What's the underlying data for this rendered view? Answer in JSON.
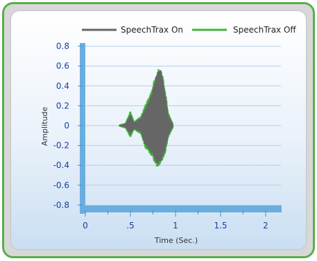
{
  "chart_data": {
    "type": "line",
    "xlabel": "Time (Sec.)",
    "ylabel": "Amplitude",
    "xlim": [
      0,
      2.15
    ],
    "ylim": [
      -0.85,
      0.85
    ],
    "x_ticks": [
      {
        "value": 0,
        "label": "0"
      },
      {
        "value": 0.5,
        "label": ".5"
      },
      {
        "value": 1,
        "label": "1"
      },
      {
        "value": 1.5,
        "label": "1.5"
      },
      {
        "value": 2,
        "label": "2"
      }
    ],
    "y_ticks": [
      {
        "value": 0.8,
        "label": "0.8"
      },
      {
        "value": 0.6,
        "label": "0.6"
      },
      {
        "value": 0.4,
        "label": "0.4"
      },
      {
        "value": 0.2,
        "label": "0.2"
      },
      {
        "value": 0,
        "label": "0"
      },
      {
        "value": -0.2,
        "label": "-0.2"
      },
      {
        "value": -0.4,
        "label": "-0.4"
      },
      {
        "value": -0.6,
        "label": "-0.6"
      },
      {
        "value": -0.8,
        "label": "-0.8"
      }
    ],
    "legend_position": "top",
    "series": [
      {
        "name": "SpeechTrax On",
        "color": "#666666",
        "envelope": [
          {
            "x": 0.38,
            "upper": 0.005,
            "lower": -0.005
          },
          {
            "x": 0.45,
            "upper": 0.02,
            "lower": -0.02
          },
          {
            "x": 0.5,
            "upper": 0.12,
            "lower": -0.09
          },
          {
            "x": 0.54,
            "upper": 0.03,
            "lower": -0.03
          },
          {
            "x": 0.62,
            "upper": 0.08,
            "lower": -0.07
          },
          {
            "x": 0.66,
            "upper": 0.16,
            "lower": -0.19
          },
          {
            "x": 0.72,
            "upper": 0.28,
            "lower": -0.26
          },
          {
            "x": 0.77,
            "upper": 0.44,
            "lower": -0.34
          },
          {
            "x": 0.8,
            "upper": 0.55,
            "lower": -0.4
          },
          {
            "x": 0.84,
            "upper": 0.56,
            "lower": -0.36
          },
          {
            "x": 0.88,
            "upper": 0.36,
            "lower": -0.27
          },
          {
            "x": 0.92,
            "upper": 0.1,
            "lower": -0.1
          },
          {
            "x": 0.97,
            "upper": 0.01,
            "lower": -0.01
          }
        ]
      },
      {
        "name": "SpeechTrax Off",
        "color": "#44b23c",
        "envelope": [
          {
            "x": 0.38,
            "upper": 0.01,
            "lower": -0.01
          },
          {
            "x": 0.45,
            "upper": 0.03,
            "lower": -0.03
          },
          {
            "x": 0.5,
            "upper": 0.15,
            "lower": -0.12
          },
          {
            "x": 0.54,
            "upper": 0.04,
            "lower": -0.04
          },
          {
            "x": 0.62,
            "upper": 0.1,
            "lower": -0.09
          },
          {
            "x": 0.66,
            "upper": 0.2,
            "lower": -0.22
          },
          {
            "x": 0.72,
            "upper": 0.32,
            "lower": -0.29
          },
          {
            "x": 0.77,
            "upper": 0.48,
            "lower": -0.37
          },
          {
            "x": 0.8,
            "upper": 0.58,
            "lower": -0.43
          },
          {
            "x": 0.84,
            "upper": 0.58,
            "lower": -0.39
          },
          {
            "x": 0.88,
            "upper": 0.4,
            "lower": -0.3
          },
          {
            "x": 0.92,
            "upper": 0.13,
            "lower": -0.12
          },
          {
            "x": 0.97,
            "upper": 0.02,
            "lower": -0.02
          }
        ]
      }
    ]
  }
}
